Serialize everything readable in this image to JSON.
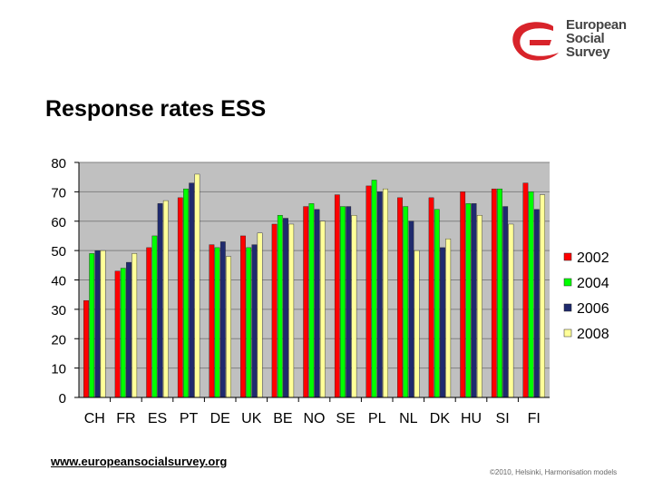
{
  "logo": {
    "lines": [
      "European",
      "Social",
      "Survey"
    ],
    "colors": {
      "red": "#d8232a",
      "text": "#4a4a4a"
    }
  },
  "title": "Response rates ESS",
  "footer": {
    "link": "www.europeansocialsurvey.org",
    "note": "©2010, Helsinki, Harmonisation models"
  },
  "chart_data": {
    "type": "bar",
    "categories": [
      "CH",
      "FR",
      "ES",
      "PT",
      "DE",
      "UK",
      "BE",
      "NO",
      "SE",
      "PL",
      "NL",
      "DK",
      "HU",
      "SI",
      "FI"
    ],
    "series": [
      {
        "name": "2002",
        "color": "#ff0000",
        "values": [
          33,
          43,
          51,
          68,
          52,
          55,
          59,
          65,
          69,
          72,
          68,
          68,
          70,
          71,
          73
        ]
      },
      {
        "name": "2004",
        "color": "#00ff00",
        "values": [
          49,
          44,
          55,
          71,
          51,
          51,
          62,
          66,
          65,
          74,
          65,
          64,
          66,
          71,
          70
        ]
      },
      {
        "name": "2006",
        "color": "#1f2a6e",
        "values": [
          50,
          46,
          66,
          73,
          53,
          52,
          61,
          64,
          65,
          70,
          60,
          51,
          66,
          65,
          64
        ]
      },
      {
        "name": "2008",
        "color": "#ffff99",
        "values": [
          50,
          49,
          67,
          76,
          48,
          56,
          59,
          60,
          62,
          71,
          50,
          54,
          62,
          59,
          69
        ]
      }
    ],
    "ylim": [
      0,
      80
    ],
    "yticks": [
      0,
      10,
      20,
      30,
      40,
      50,
      60,
      70,
      80
    ],
    "grid": true,
    "legend": "right",
    "plot_background": "#c0c0c0"
  }
}
